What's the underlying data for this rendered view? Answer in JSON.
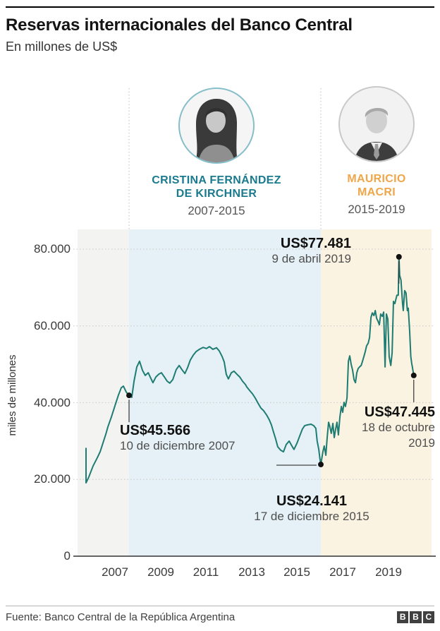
{
  "header": {
    "title": "Reservas internacionales del Banco Central",
    "subtitle": "En millones de US$"
  },
  "presidents": [
    {
      "name_line1": "CRISTINA FERNÁNDEZ",
      "name_line2": "DE KIRCHNER",
      "years": "2007-2015",
      "color": "#1a7b8e"
    },
    {
      "name_line1": "MAURICIO",
      "name_line2": "MACRI",
      "years": "2015-2019",
      "color": "#f0a64a"
    }
  ],
  "chart_data": {
    "type": "line",
    "title": "Reservas internacionales del Banco Central",
    "subtitle": "En millones de US$",
    "xlabel": "",
    "ylabel": "miles de millones",
    "y_ticks": [
      "80.000",
      "60.000",
      "40.000",
      "20.000",
      "0"
    ],
    "y_tick_values": [
      80000,
      60000,
      40000,
      20000,
      0
    ],
    "x_ticks": [
      "2007",
      "2009",
      "2011",
      "2013",
      "2015",
      "2017",
      "2019"
    ],
    "ylim": [
      0,
      88000
    ],
    "grid": "dotted horizontal",
    "legend": "none",
    "line_color": "#1e7c73",
    "grid_values": [
      80000,
      60000,
      40000,
      20000
    ],
    "guide_years": [
      2007.62,
      2016.04
    ],
    "bands": [
      {
        "label": "pre-2007",
        "from_year": 2005.36,
        "to_year": 2007.62,
        "color": "#f3f3f1"
      },
      {
        "label": "Kirchner 2007-2015",
        "from_year": 2007.62,
        "to_year": 2016.04,
        "color": "#e5f1f6"
      },
      {
        "label": "Macri 2015-2019",
        "from_year": 2016.04,
        "to_year": 2020.9,
        "color": "#fbf3e1"
      }
    ],
    "markers": [
      [
        2007.62,
        41900
      ],
      [
        2016.04,
        23900
      ],
      [
        2019.47,
        78000
      ],
      [
        2020.12,
        47100
      ]
    ],
    "annotations": [
      {
        "value_label": "US$45.566",
        "date_label": "10 de diciembre 2007"
      },
      {
        "value_label": "US$77.481",
        "date_label": "9 de abril 2019"
      },
      {
        "value_label": "US$24.141",
        "date_label": "17 de diciembre 2015"
      },
      {
        "value_label": "US$47.445",
        "date_label": "18 de octubre",
        "date_label2": "2019"
      }
    ],
    "series": [
      {
        "name": "Reservas internacionales (millones de US$)",
        "points": [
          [
            2005.73,
            28100
          ],
          [
            2005.73,
            19100
          ],
          [
            2005.85,
            20600
          ],
          [
            2006.04,
            23500
          ],
          [
            2006.23,
            25700
          ],
          [
            2006.35,
            27200
          ],
          [
            2006.47,
            29400
          ],
          [
            2006.6,
            31800
          ],
          [
            2006.69,
            33700
          ],
          [
            2006.85,
            36400
          ],
          [
            2007.0,
            39200
          ],
          [
            2007.15,
            41900
          ],
          [
            2007.28,
            43900
          ],
          [
            2007.37,
            44300
          ],
          [
            2007.5,
            42700
          ],
          [
            2007.62,
            41900
          ],
          [
            2007.74,
            41400
          ],
          [
            2007.84,
            45600
          ],
          [
            2007.96,
            49300
          ],
          [
            2008.08,
            50800
          ],
          [
            2008.21,
            48400
          ],
          [
            2008.33,
            47100
          ],
          [
            2008.46,
            47800
          ],
          [
            2008.58,
            46300
          ],
          [
            2008.67,
            45200
          ],
          [
            2008.8,
            46700
          ],
          [
            2008.92,
            47400
          ],
          [
            2009.04,
            47800
          ],
          [
            2009.17,
            46700
          ],
          [
            2009.29,
            45600
          ],
          [
            2009.41,
            45100
          ],
          [
            2009.54,
            46000
          ],
          [
            2009.69,
            48600
          ],
          [
            2009.82,
            49700
          ],
          [
            2009.94,
            48600
          ],
          [
            2010.07,
            47600
          ],
          [
            2010.19,
            49100
          ],
          [
            2010.31,
            51100
          ],
          [
            2010.44,
            52400
          ],
          [
            2010.56,
            53300
          ],
          [
            2010.71,
            53900
          ],
          [
            2010.87,
            54400
          ],
          [
            2011.02,
            54100
          ],
          [
            2011.15,
            54600
          ],
          [
            2011.3,
            53900
          ],
          [
            2011.46,
            54300
          ],
          [
            2011.58,
            53500
          ],
          [
            2011.71,
            52000
          ],
          [
            2011.8,
            50600
          ],
          [
            2011.89,
            47400
          ],
          [
            2011.98,
            46200
          ],
          [
            2012.11,
            47800
          ],
          [
            2012.23,
            48200
          ],
          [
            2012.36,
            47400
          ],
          [
            2012.48,
            46700
          ],
          [
            2012.6,
            45600
          ],
          [
            2012.73,
            44700
          ],
          [
            2012.79,
            44100
          ],
          [
            2012.91,
            43200
          ],
          [
            2013.04,
            42300
          ],
          [
            2013.16,
            41200
          ],
          [
            2013.28,
            39900
          ],
          [
            2013.41,
            38600
          ],
          [
            2013.53,
            37900
          ],
          [
            2013.66,
            36800
          ],
          [
            2013.78,
            35500
          ],
          [
            2013.87,
            34200
          ],
          [
            2013.96,
            32400
          ],
          [
            2014.06,
            30500
          ],
          [
            2014.15,
            28500
          ],
          [
            2014.28,
            27600
          ],
          [
            2014.4,
            27200
          ],
          [
            2014.52,
            29100
          ],
          [
            2014.65,
            30000
          ],
          [
            2014.77,
            28700
          ],
          [
            2014.86,
            27800
          ],
          [
            2014.99,
            29400
          ],
          [
            2015.11,
            31300
          ],
          [
            2015.23,
            33100
          ],
          [
            2015.33,
            34000
          ],
          [
            2015.45,
            34200
          ],
          [
            2015.61,
            34400
          ],
          [
            2015.73,
            34000
          ],
          [
            2015.82,
            33300
          ],
          [
            2015.88,
            30000
          ],
          [
            2015.95,
            27800
          ],
          [
            2016.0,
            25400
          ],
          [
            2016.04,
            23900
          ],
          [
            2016.13,
            27200
          ],
          [
            2016.19,
            28700
          ],
          [
            2016.26,
            26300
          ],
          [
            2016.32,
            30900
          ],
          [
            2016.38,
            34900
          ],
          [
            2016.44,
            33700
          ],
          [
            2016.5,
            32000
          ],
          [
            2016.57,
            34600
          ],
          [
            2016.63,
            30900
          ],
          [
            2016.69,
            33100
          ],
          [
            2016.75,
            34900
          ],
          [
            2016.81,
            31600
          ],
          [
            2016.88,
            36400
          ],
          [
            2016.94,
            39000
          ],
          [
            2017.0,
            37500
          ],
          [
            2017.06,
            40100
          ],
          [
            2017.12,
            39000
          ],
          [
            2017.19,
            41200
          ],
          [
            2017.25,
            50800
          ],
          [
            2017.31,
            52200
          ],
          [
            2017.37,
            50000
          ],
          [
            2017.43,
            48600
          ],
          [
            2017.5,
            46000
          ],
          [
            2017.56,
            45200
          ],
          [
            2017.62,
            47800
          ],
          [
            2017.68,
            48900
          ],
          [
            2017.74,
            49300
          ],
          [
            2017.81,
            49700
          ],
          [
            2017.87,
            50800
          ],
          [
            2017.93,
            52000
          ],
          [
            2017.99,
            53300
          ],
          [
            2018.05,
            54800
          ],
          [
            2018.12,
            55500
          ],
          [
            2018.18,
            57000
          ],
          [
            2018.24,
            62200
          ],
          [
            2018.3,
            63400
          ],
          [
            2018.37,
            62700
          ],
          [
            2018.43,
            64000
          ],
          [
            2018.49,
            62000
          ],
          [
            2018.55,
            61200
          ],
          [
            2018.61,
            60300
          ],
          [
            2018.67,
            63100
          ],
          [
            2018.74,
            62500
          ],
          [
            2018.8,
            63600
          ],
          [
            2018.86,
            49300
          ],
          [
            2018.92,
            63100
          ],
          [
            2018.98,
            61800
          ],
          [
            2019.04,
            52000
          ],
          [
            2019.11,
            49700
          ],
          [
            2019.17,
            53000
          ],
          [
            2019.23,
            66400
          ],
          [
            2019.29,
            65800
          ],
          [
            2019.35,
            67300
          ],
          [
            2019.38,
            68000
          ],
          [
            2019.44,
            68000
          ],
          [
            2019.47,
            78000
          ],
          [
            2019.5,
            73200
          ],
          [
            2019.56,
            71900
          ],
          [
            2019.63,
            65800
          ],
          [
            2019.66,
            64000
          ],
          [
            2019.72,
            69200
          ],
          [
            2019.78,
            68600
          ],
          [
            2019.84,
            64000
          ],
          [
            2019.88,
            64600
          ],
          [
            2019.94,
            58500
          ],
          [
            2019.99,
            52000
          ],
          [
            2020.03,
            50200
          ],
          [
            2020.06,
            49300
          ],
          [
            2020.09,
            48200
          ],
          [
            2020.12,
            47100
          ]
        ]
      }
    ]
  },
  "footer": {
    "source": "Fuente: Banco Central de la República Argentina",
    "logo_letters": [
      "B",
      "B",
      "C"
    ]
  }
}
